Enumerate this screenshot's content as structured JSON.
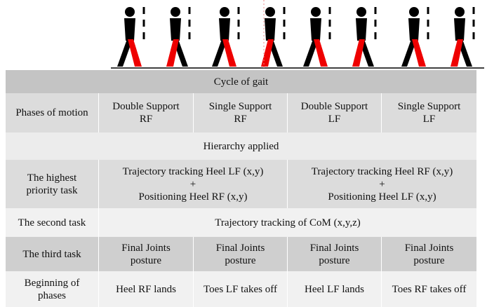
{
  "table": {
    "rows": [
      {
        "cells": [
          {
            "lines": [
              "Cycle of gait"
            ]
          }
        ]
      },
      {
        "cells": [
          {
            "lines": [
              "Phases of motion"
            ]
          },
          {
            "lines": [
              "Double Support",
              "RF"
            ]
          },
          {
            "lines": [
              "Single Support",
              "RF"
            ]
          },
          {
            "lines": [
              "Double Support",
              "LF"
            ]
          },
          {
            "lines": [
              "Single Support",
              "LF"
            ]
          }
        ]
      },
      {
        "cells": [
          {
            "lines": [
              "Hierarchy applied"
            ]
          }
        ]
      },
      {
        "cells": [
          {
            "lines": [
              "The highest",
              "priority task"
            ]
          },
          {
            "lines": [
              "Trajectory tracking Heel LF (x,y)",
              "+",
              "Positioning Heel RF (x,y)"
            ]
          },
          {
            "lines": [
              "Trajectory tracking Heel RF (x,y)",
              "+",
              "Positioning Heel LF (x,y)"
            ]
          }
        ]
      },
      {
        "cells": [
          {
            "lines": [
              "The second task"
            ]
          },
          {
            "lines": [
              "Trajectory tracking of CoM (x,y,z)"
            ]
          }
        ]
      },
      {
        "cells": [
          {
            "lines": [
              "The third task"
            ]
          },
          {
            "lines": [
              "Final Joints",
              "posture"
            ]
          },
          {
            "lines": [
              "Final Joints",
              "posture"
            ]
          },
          {
            "lines": [
              "Final Joints",
              "posture"
            ]
          },
          {
            "lines": [
              "Final Joints",
              "posture"
            ]
          }
        ]
      },
      {
        "cells": [
          {
            "lines": [
              "Beginning of",
              "phases"
            ]
          },
          {
            "lines": [
              "Heel RF lands"
            ]
          },
          {
            "lines": [
              "Toes LF takes off"
            ]
          },
          {
            "lines": [
              "Heel LF lands"
            ]
          },
          {
            "lines": [
              "Toes RF takes off"
            ]
          }
        ]
      }
    ]
  }
}
